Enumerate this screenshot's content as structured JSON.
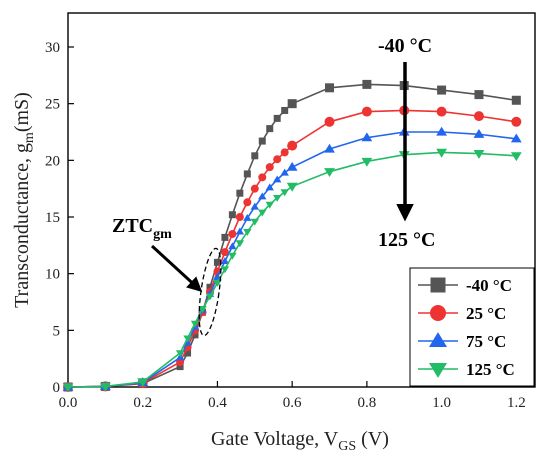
{
  "chart_data": {
    "type": "line",
    "xlabel_main": "Gate Voltage, V",
    "xlabel_sub": "GS",
    "xlabel_tail": " (V)",
    "ylabel_main": "Transconductance, g",
    "ylabel_sub": "m",
    "ylabel_tail": "(mS)",
    "xlim": [
      0,
      1.25
    ],
    "ylim": [
      0,
      33
    ],
    "xticks": [
      "0.0",
      "0.2",
      "0.4",
      "0.6",
      "0.8",
      "1.0",
      "1.2"
    ],
    "yticks": [
      "0",
      "5",
      "10",
      "15",
      "20",
      "25",
      "30"
    ],
    "legend_position": "bottom-right",
    "annotations": {
      "ztc_main": "ZTC",
      "ztc_sub": "gm",
      "top_label": "-40 °C",
      "bottom_label": "125 °C"
    },
    "series": [
      {
        "name": "-40 °C",
        "color": "#555555",
        "marker": "square",
        "x": [
          0,
          0.1,
          0.2,
          0.3,
          0.32,
          0.34,
          0.36,
          0.38,
          0.4,
          0.42,
          0.44,
          0.46,
          0.48,
          0.5,
          0.52,
          0.54,
          0.56,
          0.58,
          0.6,
          0.7,
          0.8,
          0.9,
          1.0,
          1.1,
          1.2
        ],
        "y": [
          0,
          0.05,
          0.3,
          1.8,
          3.0,
          4.6,
          6.6,
          8.8,
          11.0,
          13.2,
          15.2,
          17.1,
          18.8,
          20.4,
          21.7,
          22.8,
          23.7,
          24.4,
          25.0,
          26.4,
          26.7,
          26.6,
          26.2,
          25.8,
          25.3
        ]
      },
      {
        "name": "25 °C",
        "color": "#ee3333",
        "marker": "circle",
        "x": [
          0,
          0.1,
          0.2,
          0.3,
          0.32,
          0.34,
          0.36,
          0.38,
          0.4,
          0.42,
          0.44,
          0.46,
          0.48,
          0.5,
          0.52,
          0.54,
          0.56,
          0.58,
          0.6,
          0.7,
          0.8,
          0.9,
          1.0,
          1.1,
          1.2
        ],
        "y": [
          0,
          0.05,
          0.35,
          2.2,
          3.5,
          5.0,
          6.6,
          8.4,
          10.2,
          11.9,
          13.5,
          15.0,
          16.3,
          17.5,
          18.5,
          19.4,
          20.1,
          20.7,
          21.3,
          23.4,
          24.3,
          24.4,
          24.3,
          23.9,
          23.4
        ]
      },
      {
        "name": "75 °C",
        "color": "#2266ee",
        "marker": "triangle",
        "x": [
          0,
          0.1,
          0.2,
          0.3,
          0.32,
          0.34,
          0.36,
          0.38,
          0.4,
          0.42,
          0.44,
          0.46,
          0.48,
          0.5,
          0.52,
          0.54,
          0.56,
          0.58,
          0.6,
          0.7,
          0.8,
          0.9,
          1.0,
          1.1,
          1.2
        ],
        "y": [
          0,
          0.05,
          0.4,
          2.6,
          3.9,
          5.3,
          6.8,
          8.2,
          9.7,
          11.1,
          12.4,
          13.7,
          14.9,
          15.9,
          16.8,
          17.6,
          18.3,
          18.9,
          19.4,
          21.0,
          22.0,
          22.5,
          22.5,
          22.3,
          21.9
        ]
      },
      {
        "name": "125 °C",
        "color": "#22bb66",
        "marker": "triangle-down",
        "x": [
          0,
          0.1,
          0.2,
          0.3,
          0.32,
          0.34,
          0.36,
          0.38,
          0.4,
          0.42,
          0.44,
          0.46,
          0.48,
          0.5,
          0.52,
          0.54,
          0.56,
          0.58,
          0.6,
          0.7,
          0.8,
          0.9,
          1.0,
          1.1,
          1.2
        ],
        "y": [
          0,
          0.05,
          0.45,
          3.0,
          4.3,
          5.6,
          6.9,
          8.0,
          9.2,
          10.4,
          11.6,
          12.7,
          13.7,
          14.6,
          15.4,
          16.1,
          16.7,
          17.2,
          17.7,
          19.0,
          19.9,
          20.5,
          20.7,
          20.6,
          20.4
        ]
      }
    ]
  }
}
